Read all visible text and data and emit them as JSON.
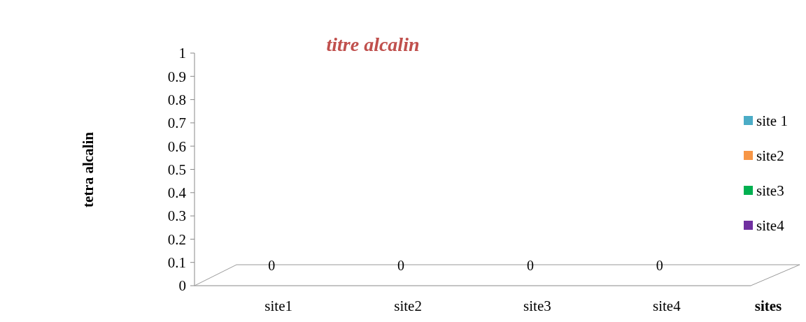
{
  "chart_data": {
    "type": "bar",
    "title": "titre alcalin",
    "xlabel": "sites",
    "ylabel": "tetra alcalin",
    "categories": [
      "site1",
      "site2",
      "site3",
      "site4"
    ],
    "series": [
      {
        "name": "site 1",
        "color": "#4bacc6",
        "values": [
          0,
          null,
          null,
          null
        ]
      },
      {
        "name": "site2",
        "color": "#f79646",
        "values": [
          null,
          0,
          null,
          null
        ]
      },
      {
        "name": "site3",
        "color": "#00b050",
        "values": [
          null,
          null,
          0,
          null
        ]
      },
      {
        "name": "site4",
        "color": "#7030a0",
        "values": [
          null,
          null,
          null,
          0
        ]
      }
    ],
    "ylim": [
      0,
      1
    ],
    "yticks": [
      0,
      0.1,
      0.2,
      0.3,
      0.4,
      0.5,
      0.6,
      0.7,
      0.8,
      0.9,
      1
    ],
    "data_labels": true,
    "legend": "right",
    "grid": false
  }
}
